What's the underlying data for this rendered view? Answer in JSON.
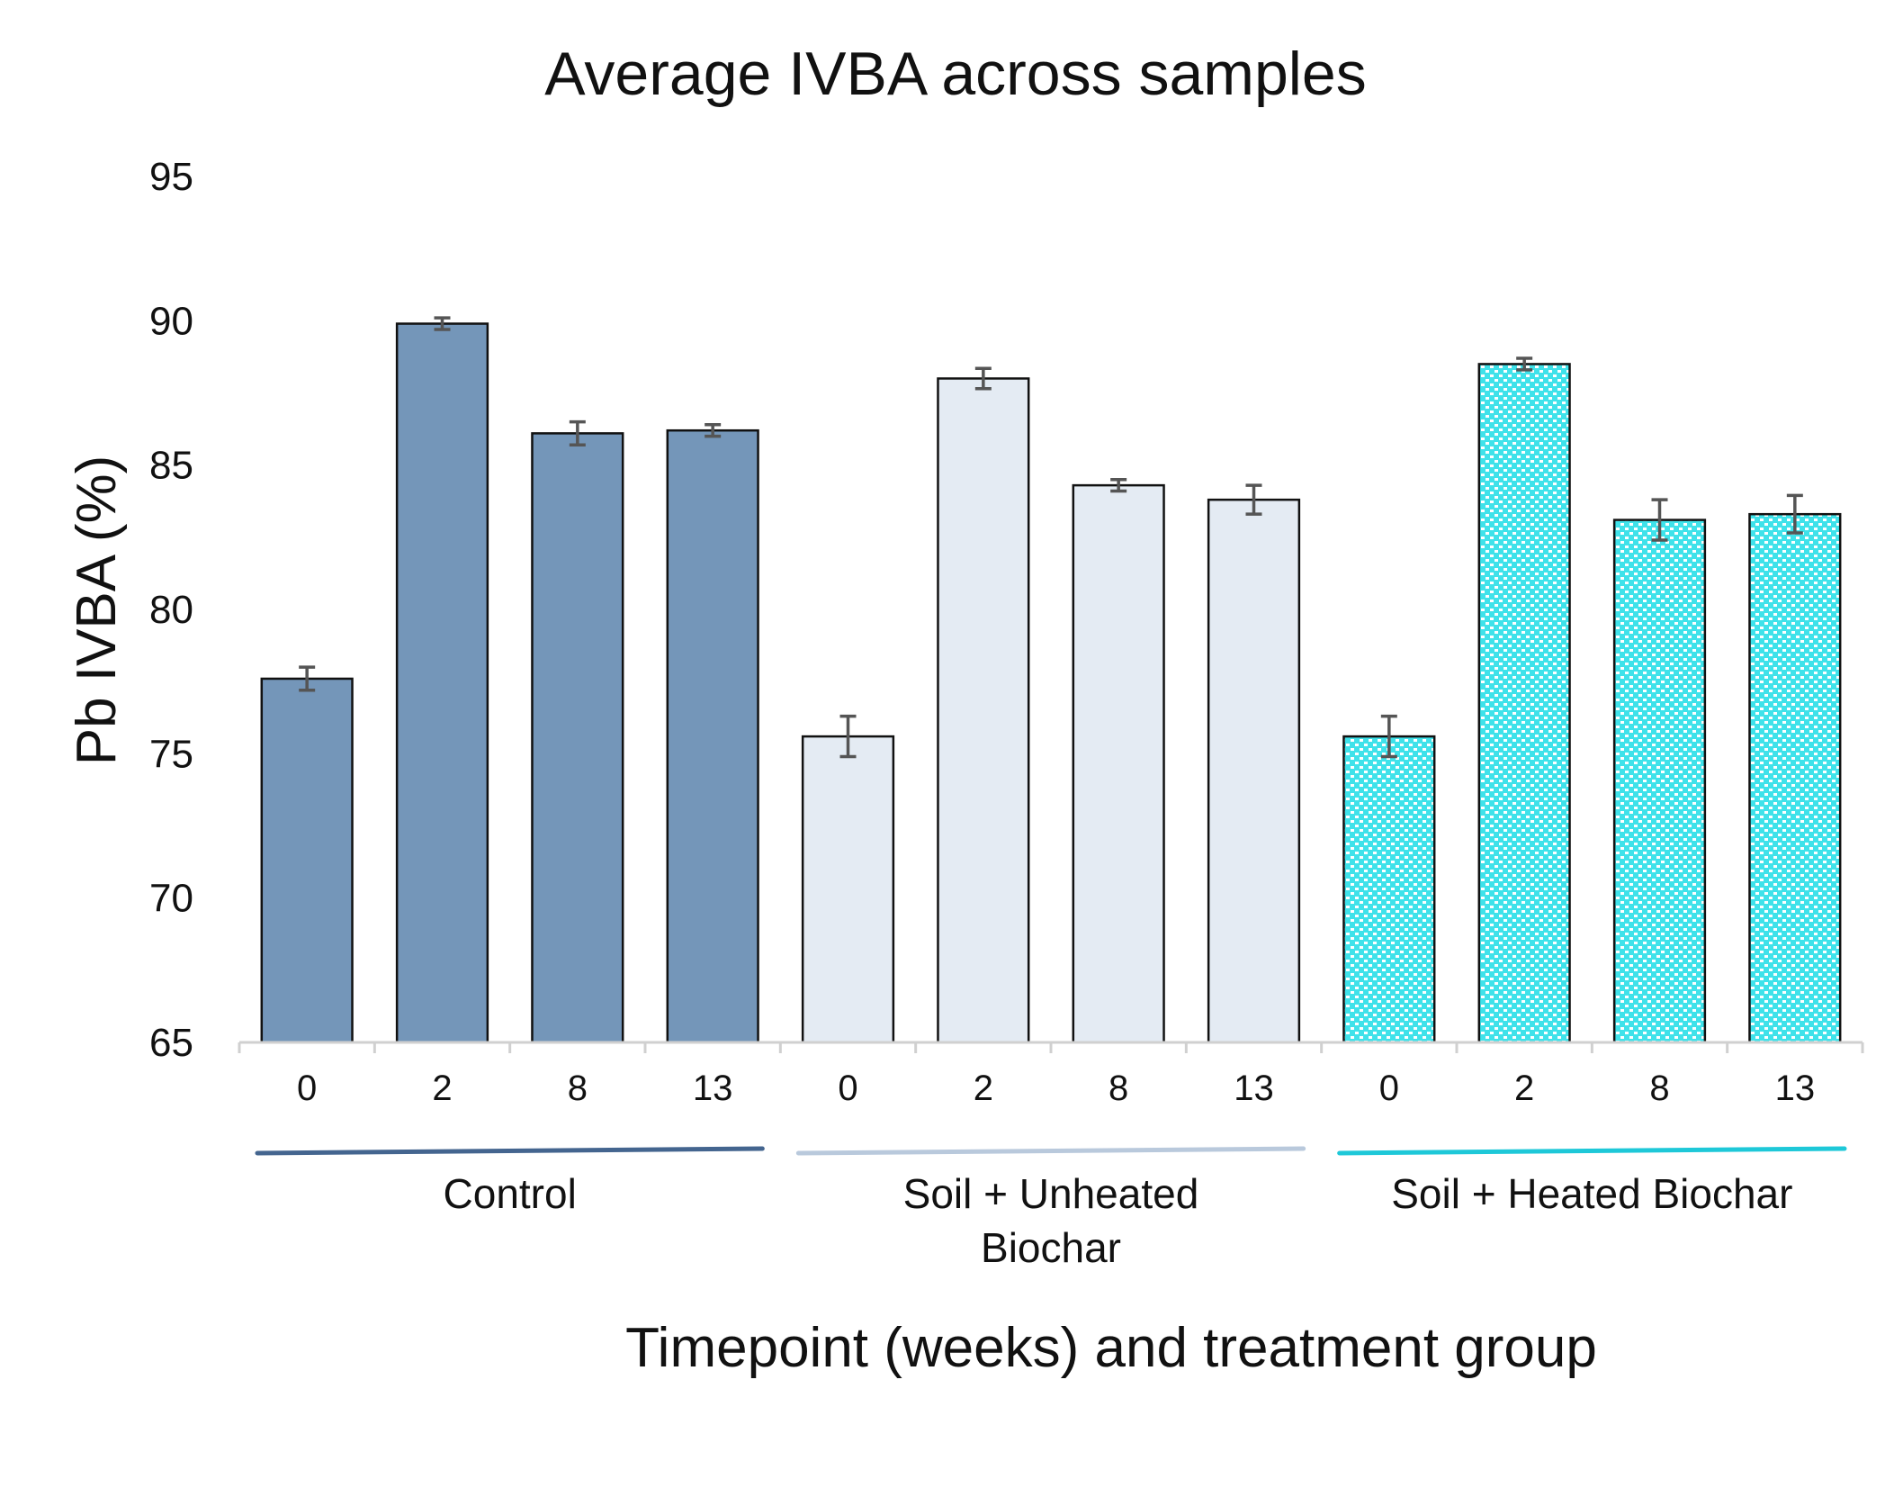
{
  "chart_data": {
    "type": "bar",
    "title": "Average IVBA across samples",
    "xlabel": "Timepoint (weeks) and treatment group",
    "ylabel": "Pb IVBA (%)",
    "ylim": [
      65,
      95
    ],
    "yticks": [
      "65",
      "70",
      "75",
      "80",
      "85",
      "90",
      "95"
    ],
    "grid": false,
    "groups": [
      {
        "name": "Control",
        "label_lines": [
          "Control"
        ],
        "color": "#7496b9",
        "line_color": "#44658f",
        "pattern": "solid",
        "categories": [
          "0",
          "2",
          "8",
          "13"
        ],
        "values": [
          77.6,
          89.9,
          86.1,
          86.2
        ],
        "errors": [
          0.4,
          0.2,
          0.4,
          0.2
        ]
      },
      {
        "name": "Soil + Unheated Biochar",
        "label_lines": [
          "Soil + Unheated",
          "Biochar"
        ],
        "color": "#e4ebf3",
        "line_color": "#b9c9dc",
        "pattern": "solid",
        "categories": [
          "0",
          "2",
          "8",
          "13"
        ],
        "values": [
          75.6,
          88.0,
          84.3,
          83.8
        ],
        "errors": [
          0.7,
          0.35,
          0.2,
          0.5
        ]
      },
      {
        "name": "Soil + Heated Biochar",
        "label_lines": [
          "Soil + Heated Biochar"
        ],
        "color": "#3fe2ea",
        "line_color": "#1ec8d8",
        "pattern": "dotted",
        "categories": [
          "0",
          "2",
          "8",
          "13"
        ],
        "values": [
          75.6,
          88.5,
          83.1,
          83.3
        ],
        "errors": [
          0.7,
          0.2,
          0.7,
          0.65
        ]
      }
    ],
    "error_bar_color": "#555555"
  }
}
